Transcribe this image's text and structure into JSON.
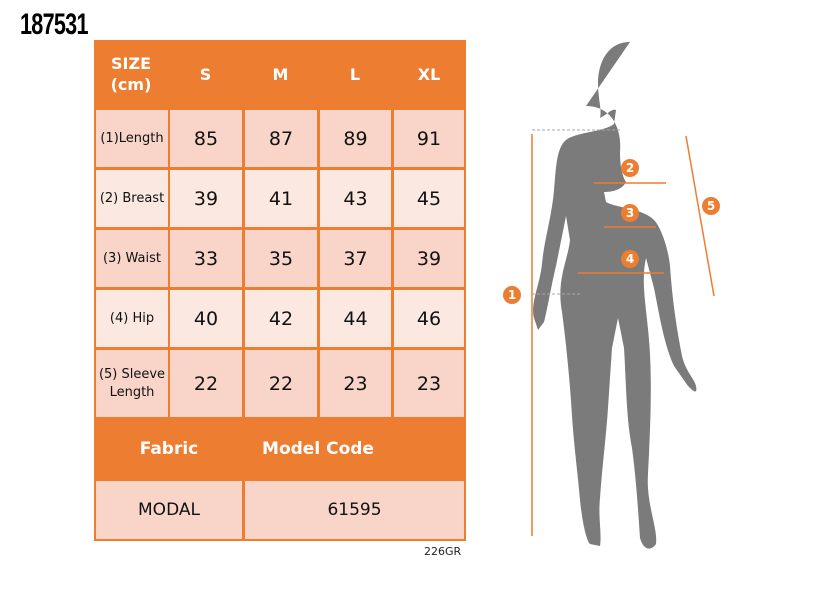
{
  "product_code": "187531",
  "size_table": {
    "header": {
      "label": "SIZE (cm)",
      "sizes": [
        "S",
        "M",
        "L",
        "XL"
      ]
    },
    "rows": [
      {
        "label": "(1)Length",
        "values": [
          "85",
          "87",
          "89",
          "91"
        ]
      },
      {
        "label": "(2) Breast",
        "values": [
          "39",
          "41",
          "43",
          "45"
        ]
      },
      {
        "label": "(3) Waist",
        "values": [
          "33",
          "35",
          "37",
          "39"
        ]
      },
      {
        "label": "(4) Hip",
        "values": [
          "40",
          "42",
          "44",
          "46"
        ]
      },
      {
        "label": "(5) Sleeve Length",
        "values": [
          "22",
          "22",
          "23",
          "23"
        ]
      }
    ],
    "footer": {
      "fabric_label": "Fabric",
      "model_code_label": "Model Code",
      "fabric": "MODAL",
      "model_code": "61595"
    }
  },
  "reference": "226GR",
  "figure": {
    "markers": [
      "1",
      "2",
      "3",
      "4",
      "5"
    ],
    "accent": "#ed7d31",
    "silhouette": "#7b7b7b"
  }
}
